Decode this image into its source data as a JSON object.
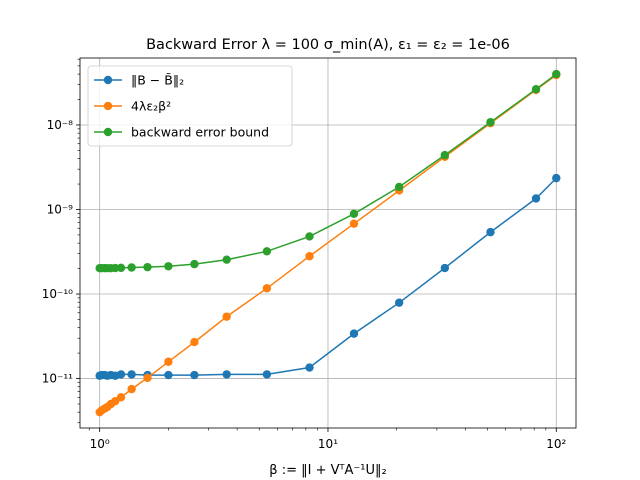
{
  "chart_data": {
    "type": "line",
    "title": "Backward Error λ = 100 σ_min(A), ε₁ = ε₂ = 1e-06",
    "xlabel": "β := ‖I + VᵀA⁻¹U‖₂",
    "ylabel": "",
    "xscale": "log",
    "yscale": "log",
    "xlim": [
      0.82,
      122
    ],
    "ylim": [
      2.6e-12,
      6.2e-08
    ],
    "grid": true,
    "legend_position": "upper left",
    "x_ticks": [
      {
        "value": 1,
        "label": "10⁰"
      },
      {
        "value": 10,
        "label": "10¹"
      },
      {
        "value": 100,
        "label": "10²"
      }
    ],
    "y_ticks": [
      {
        "value": 1e-11,
        "label": "10⁻¹¹"
      },
      {
        "value": 1e-10,
        "label": "10⁻¹⁰"
      },
      {
        "value": 1e-09,
        "label": "10⁻⁹"
      },
      {
        "value": 1e-08,
        "label": "10⁻⁸"
      }
    ],
    "x": [
      1.0,
      1.02,
      1.05,
      1.08,
      1.12,
      1.17,
      1.24,
      1.38,
      1.62,
      2.0,
      2.6,
      3.6,
      5.4,
      8.3,
      13,
      20.5,
      32.5,
      51.5,
      81.5,
      100
    ],
    "series": [
      {
        "name": "‖B − B̃‖₂",
        "color": "#1f77b4",
        "values": [
          1.08e-11,
          1.1e-11,
          1.1e-11,
          1.08e-11,
          1.1e-11,
          1.08e-11,
          1.12e-11,
          1.12e-11,
          1.1e-11,
          1.1e-11,
          1.1e-11,
          1.12e-11,
          1.12e-11,
          1.35e-11,
          3.4e-11,
          7.9e-11,
          2.03e-10,
          5.4e-10,
          1.35e-09,
          2.35e-09
        ]
      },
      {
        "name": "4λε₂β²",
        "color": "#ff7f0e",
        "values": [
          4e-12,
          4.2e-12,
          4.4e-12,
          4.6e-12,
          5e-12,
          5.4e-12,
          6e-12,
          7.5e-12,
          1.02e-11,
          1.58e-11,
          2.7e-11,
          5.4e-11,
          1.17e-10,
          2.8e-10,
          6.8e-10,
          1.68e-09,
          4.2e-09,
          1.05e-08,
          2.6e-08,
          3.9e-08
        ]
      },
      {
        "name": "backward error bound",
        "color": "#2ca02c",
        "values": [
          2.02e-10,
          2.02e-10,
          2.02e-10,
          2.02e-10,
          2.02e-10,
          2.03e-10,
          2.04e-10,
          2.06e-10,
          2.08e-10,
          2.13e-10,
          2.26e-10,
          2.55e-10,
          3.2e-10,
          4.8e-10,
          8.9e-10,
          1.85e-09,
          4.4e-09,
          1.08e-08,
          2.65e-08,
          4e-08
        ]
      }
    ]
  }
}
